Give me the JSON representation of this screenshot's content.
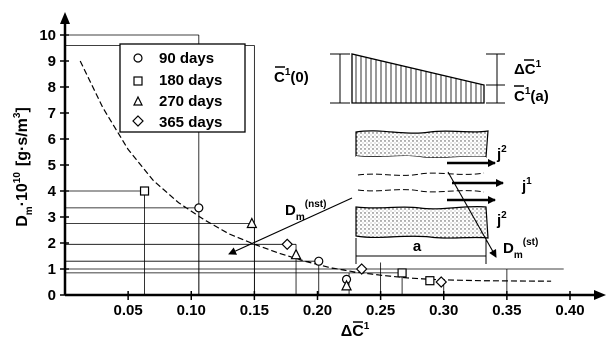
{
  "chart_data": {
    "type": "scatter",
    "xlabel_main": "ΔC",
    "xlabel_sup": "1",
    "ylabel_main": "D",
    "ylabel_sub": "m",
    "ylabel_mid": "·10",
    "ylabel_exp": "10",
    "ylabel_unit_pre": "[g·s/m",
    "ylabel_unit_exp": "3",
    "ylabel_unit_post": "]",
    "xlim": [
      0,
      0.4
    ],
    "ylim": [
      0,
      10
    ],
    "xticks": [
      "0.05",
      "0.10",
      "0.15",
      "0.20",
      "0.25",
      "0.30",
      "0.35",
      "0.40"
    ],
    "yticks": [
      "0",
      "1",
      "2",
      "3",
      "4",
      "5",
      "6",
      "7",
      "8",
      "9",
      "10"
    ],
    "grid": false,
    "legend_position": "top-left",
    "series": [
      {
        "name": "90 days",
        "marker": "circle",
        "points": [
          [
            0.106,
            3.35
          ],
          [
            0.201,
            1.3
          ],
          [
            0.223,
            0.6
          ]
        ]
      },
      {
        "name": "180 days",
        "marker": "square",
        "points": [
          [
            0.063,
            4.0
          ],
          [
            0.267,
            0.85
          ],
          [
            0.289,
            0.55
          ]
        ]
      },
      {
        "name": "270 days",
        "marker": "triangle",
        "points": [
          [
            0.148,
            2.75
          ],
          [
            0.183,
            1.55
          ],
          [
            0.223,
            0.35
          ]
        ]
      },
      {
        "name": "365 days",
        "marker": "diamond",
        "points": [
          [
            0.176,
            1.95
          ],
          [
            0.235,
            1.0
          ],
          [
            0.298,
            0.5
          ]
        ]
      }
    ],
    "fitted_curve": {
      "style": "dashed",
      "points": [
        [
          0.012,
          9.0
        ],
        [
          0.03,
          7.2
        ],
        [
          0.05,
          5.6
        ],
        [
          0.07,
          4.4
        ],
        [
          0.09,
          3.55
        ],
        [
          0.11,
          2.9
        ],
        [
          0.13,
          2.35
        ],
        [
          0.15,
          1.95
        ],
        [
          0.17,
          1.6
        ],
        [
          0.19,
          1.3
        ],
        [
          0.21,
          1.05
        ],
        [
          0.23,
          0.88
        ],
        [
          0.25,
          0.76
        ],
        [
          0.27,
          0.66
        ],
        [
          0.29,
          0.6
        ],
        [
          0.31,
          0.57
        ],
        [
          0.33,
          0.55
        ],
        [
          0.36,
          0.54
        ],
        [
          0.385,
          0.53
        ]
      ]
    },
    "annotations": {
      "c0_main": "C",
      "c0_sup": "1",
      "c0_arg": "(0)",
      "ca_main": "C",
      "ca_sup": "1",
      "ca_arg": "(a)",
      "dc_main": "ΔC",
      "dc_sup": "1",
      "j2_top_main": "j",
      "j2_top_sup": "2",
      "j1_main": "j",
      "j1_sup": "1",
      "j2_bot_main": "j",
      "j2_bot_sup": "2",
      "a_label": "a",
      "dnst_main": "D",
      "dnst_sub": "m",
      "dnst_sup": "(nst)",
      "dst_main": "D",
      "dst_sub": "m",
      "dst_sup": "(st)"
    }
  }
}
